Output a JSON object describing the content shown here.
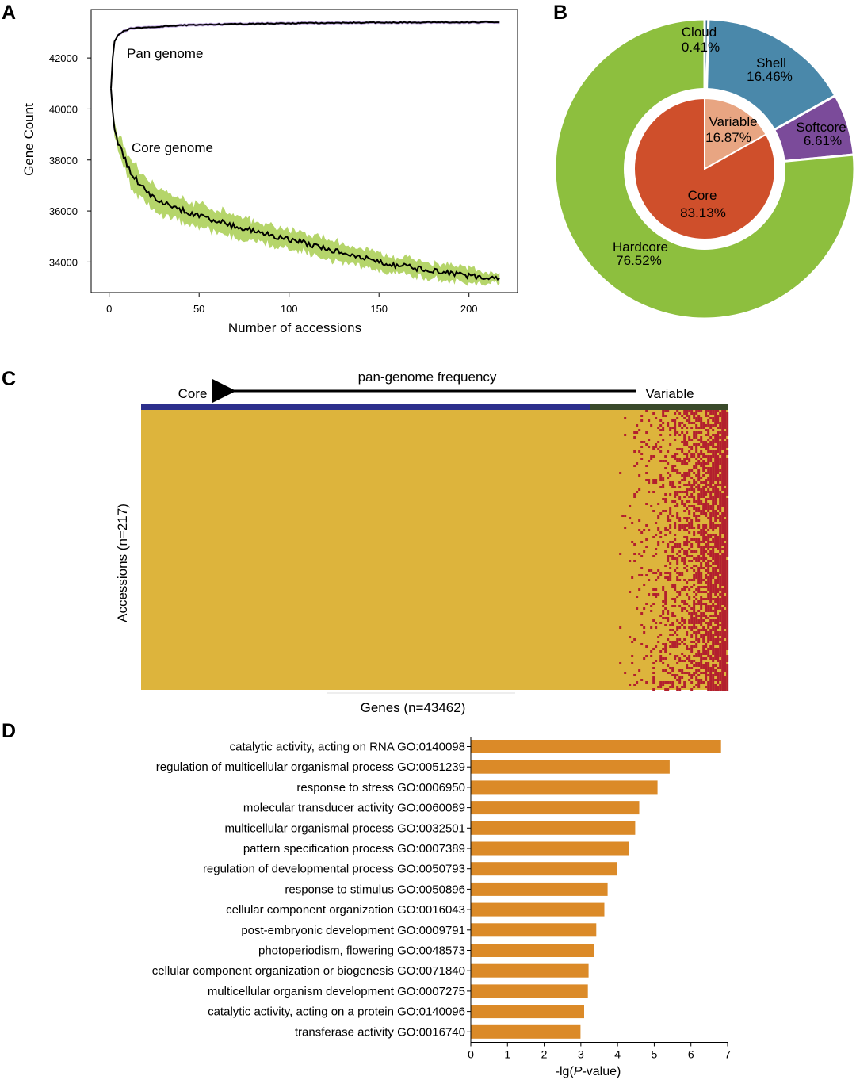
{
  "panel_labels": {
    "a": "A",
    "b": "B",
    "c": "C",
    "d": "D"
  },
  "colors": {
    "core_band": "#b5d56a",
    "pan_band": "#c9b3e6",
    "line": "#000000",
    "hardcore": "#8dbf3e",
    "shell": "#4a88aa",
    "softcore": "#7b4b9a",
    "cloud": "#3d6f8c",
    "core": "#cf4f2b",
    "variable": "#e8a582",
    "heat_present": "#ddb43c",
    "heat_absent": "#b3202e",
    "heat_bar_core": "#2c2f8c",
    "heat_bar_variable": "#3a4a2a",
    "bar": "#db8a28"
  },
  "chart_data": [
    {
      "id": "A",
      "type": "line",
      "xlabel": "Number of accessions",
      "ylabel": "Gene Count",
      "xlim": [
        -10,
        227
      ],
      "ylim": [
        32800,
        43900
      ],
      "xticks": [
        0,
        50,
        100,
        150,
        200
      ],
      "yticks": [
        34000,
        36000,
        38000,
        40000,
        42000
      ],
      "series": [
        {
          "name": "Pan genome",
          "x": [
            1,
            2,
            3,
            5,
            8,
            12,
            20,
            40,
            60,
            100,
            150,
            200,
            217
          ],
          "y": [
            40800,
            42000,
            42650,
            42900,
            43050,
            43150,
            43200,
            43280,
            43320,
            43360,
            43390,
            43400,
            43400
          ]
        },
        {
          "name": "Core genome",
          "x": [
            1,
            2,
            3,
            5,
            8,
            12,
            20,
            30,
            50,
            75,
            100,
            125,
            150,
            175,
            200,
            217
          ],
          "y": [
            40800,
            39900,
            39200,
            38700,
            38150,
            37500,
            36800,
            36300,
            35800,
            35300,
            34900,
            34450,
            34000,
            33700,
            33450,
            33300
          ],
          "band_half_width": [
            0,
            150,
            250,
            350,
            450,
            500,
            500,
            480,
            450,
            420,
            400,
            380,
            350,
            320,
            280,
            180
          ]
        }
      ]
    },
    {
      "id": "B",
      "type": "pie",
      "outer_ring": [
        {
          "label": "Cloud",
          "value": 0.41,
          "value_label": "0.41%"
        },
        {
          "label": "Shell",
          "value": 16.46,
          "value_label": "16.46%"
        },
        {
          "label": "Softcore",
          "value": 6.61,
          "value_label": "6.61%"
        },
        {
          "label": "Hardcore",
          "value": 76.52,
          "value_label": "76.52%"
        }
      ],
      "inner_pie": [
        {
          "label": "Variable",
          "value": 16.87,
          "value_label": "16.87%"
        },
        {
          "label": "Core",
          "value": 83.13,
          "value_label": "83.13%"
        }
      ]
    },
    {
      "id": "C",
      "type": "heatmap",
      "title": "pan-genome frequency",
      "arrow_left_label": "Core",
      "arrow_right_label": "Variable",
      "xlabel": "Genes (n=43462)",
      "ylabel": "Accessions (n=217)",
      "core_fraction": 0.8313
    },
    {
      "id": "D",
      "type": "bar",
      "orientation": "horizontal",
      "xlabel_prefix": "-lg(",
      "xlabel_italic": "P",
      "xlabel_suffix": "-value)",
      "xlim": [
        0,
        7
      ],
      "xticks": [
        0,
        1,
        2,
        3,
        4,
        5,
        6,
        7
      ],
      "categories": [
        "catalytic activity, acting on RNA GO:0140098",
        "regulation of multicellular organismal process GO:0051239",
        "response to stress GO:0006950",
        "molecular transducer activity GO:0060089",
        "multicellular organismal process GO:0032501",
        "pattern specification process GO:0007389",
        "regulation of developmental process GO:0050793",
        "response to stimulus GO:0050896",
        "cellular component organization GO:0016043",
        "post-embryonic development GO:0009791",
        "photoperiodism, flowering GO:0048573",
        "cellular component organization or biogenesis GO:0071840",
        "multicellular organism development GO:0007275",
        "catalytic activity, acting on a protein GO:0140096",
        "transferase activity GO:0016740"
      ],
      "values": [
        6.82,
        5.42,
        5.09,
        4.59,
        4.48,
        4.32,
        3.98,
        3.73,
        3.64,
        3.42,
        3.37,
        3.21,
        3.19,
        3.09,
        2.99
      ]
    }
  ]
}
